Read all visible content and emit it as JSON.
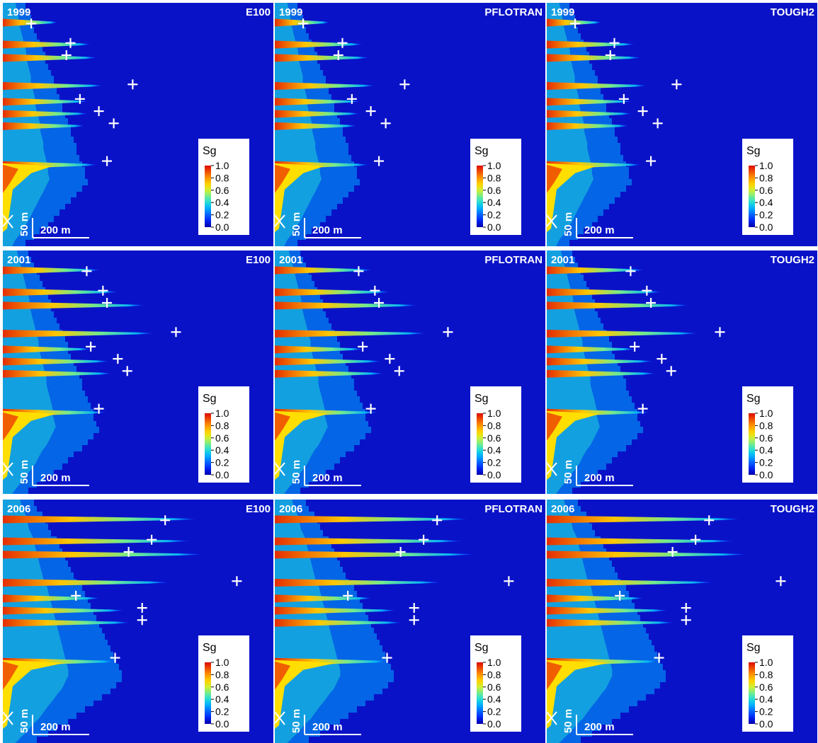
{
  "chart_data": {
    "type": "heatmap",
    "variable": "Sg",
    "colorbar": {
      "label": "Sg",
      "ticks": [
        "1.0",
        "0.8",
        "0.6",
        "0.4",
        "0.2",
        "0.0"
      ],
      "range": [
        0.0,
        1.0
      ]
    },
    "scalebar": {
      "horizontal": "200 m",
      "vertical": "50 m"
    },
    "colors": {
      "background": "#0a12c8",
      "divider": "#ffffff"
    },
    "rows": [
      {
        "year": "1999",
        "plume_scale": 1.0
      },
      {
        "year": "2001",
        "plume_scale": 1.55
      },
      {
        "year": "2006",
        "plume_scale": 2.75
      }
    ],
    "simulators": [
      "E100",
      "PFLOTRAN",
      "TOUGH2"
    ],
    "layers": [
      {
        "depth_frac": 0.08,
        "tongue_1999": 0.9,
        "tongue_2001": 1.6,
        "tongue_2006": 3.2
      },
      {
        "depth_frac": 0.17,
        "tongue_1999": 1.45,
        "tongue_2001": 1.9,
        "tongue_2006": 3.1
      },
      {
        "depth_frac": 0.225,
        "tongue_1999": 1.55,
        "tongue_2001": 2.35,
        "tongue_2006": 3.3
      },
      {
        "depth_frac": 0.34,
        "tongue_1999": 1.65,
        "tongue_2001": 2.5,
        "tongue_2006": 2.75
      },
      {
        "depth_frac": 0.405,
        "tongue_1999": 1.4,
        "tongue_2001": 1.45,
        "tongue_2006": 1.6
      },
      {
        "depth_frac": 0.455,
        "tongue_1999": 1.4,
        "tongue_2001": 1.75,
        "tongue_2006": 2.0
      },
      {
        "depth_frac": 0.505,
        "tongue_1999": 1.35,
        "tongue_2001": 1.8,
        "tongue_2006": 2.1
      },
      {
        "depth_frac": 0.665,
        "tongue_1999": 1.55,
        "tongue_2001": 1.7,
        "tongue_2006": 1.9
      }
    ],
    "markers": [
      {
        "depth_frac": 0.085,
        "x_frac": 0.105,
        "x_2001": 0.31,
        "x_2006": 0.6
      },
      {
        "depth_frac": 0.165,
        "x_frac": 0.25,
        "x_2001": 0.37,
        "x_2006": 0.55
      },
      {
        "depth_frac": 0.215,
        "x_frac": 0.235,
        "x_2001": 0.385,
        "x_2006": 0.465
      },
      {
        "depth_frac": 0.335,
        "x_frac": 0.48,
        "x_2001": 0.64,
        "x_2006": 0.865
      },
      {
        "depth_frac": 0.395,
        "x_frac": 0.285,
        "x_2001": 0.325,
        "x_2006": 0.27
      },
      {
        "depth_frac": 0.445,
        "x_frac": 0.355,
        "x_2001": 0.425,
        "x_2006": 0.515
      },
      {
        "depth_frac": 0.495,
        "x_frac": 0.41,
        "x_2001": 0.46,
        "x_2006": 0.515
      },
      {
        "depth_frac": 0.65,
        "x_frac": 0.385,
        "x_2001": 0.355,
        "x_2006": 0.415
      }
    ]
  }
}
